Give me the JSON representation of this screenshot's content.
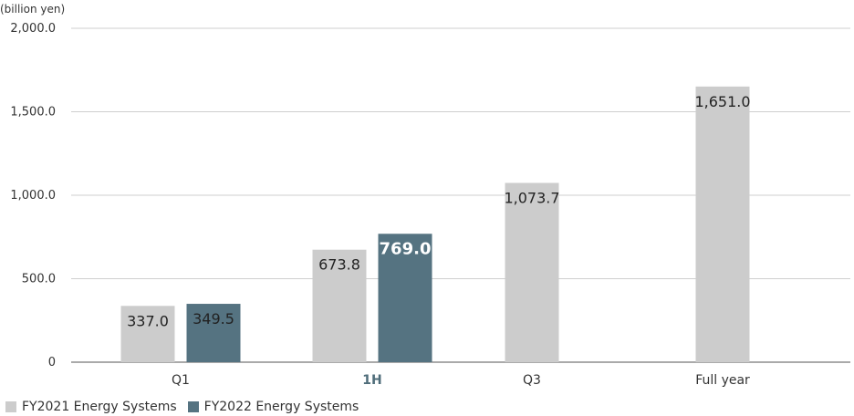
{
  "chart_data": {
    "type": "bar",
    "unit_label": "(billion yen)",
    "categories": [
      "Q1",
      "1H",
      "Q3",
      "Full year"
    ],
    "highlight_category": "1H",
    "y_ticks": [
      "2,000.0",
      "1,500.0",
      "1,000.0",
      "500.0",
      "0"
    ],
    "ylim": [
      0,
      2000
    ],
    "grid": true,
    "legend_position": "bottom-left",
    "series": [
      {
        "name": "FY2021 Energy Systems",
        "color": "#cccccc",
        "values": [
          337.0,
          673.8,
          1073.7,
          1651.0
        ],
        "labels": [
          "337.0",
          "673.8",
          "1,073.7",
          "1,651.0"
        ]
      },
      {
        "name": "FY2022 Energy Systems",
        "color": "#557381",
        "values": [
          349.5,
          769.0,
          null,
          null
        ],
        "labels": [
          "349.5",
          "769.0",
          null,
          null
        ]
      }
    ]
  }
}
